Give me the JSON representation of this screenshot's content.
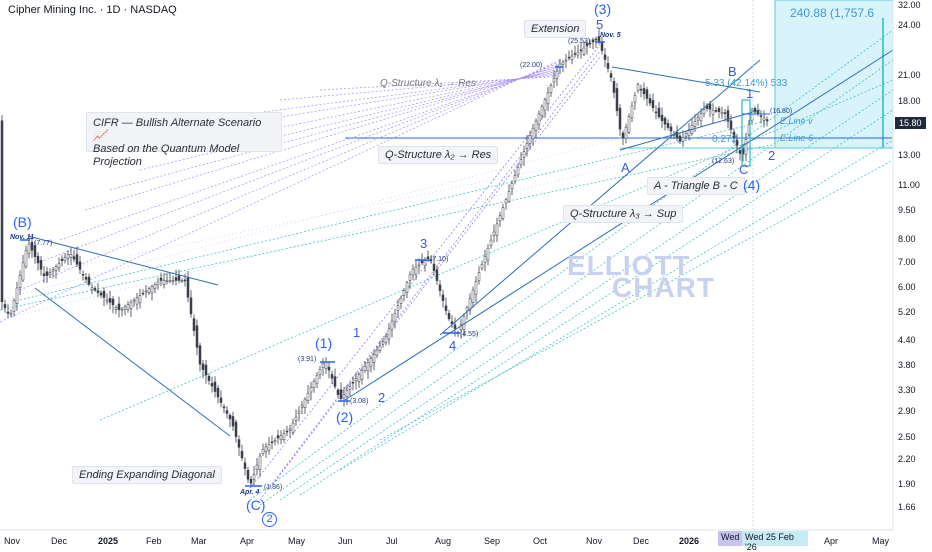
{
  "header": {
    "title": "Cipher Mining Inc. · 1D · NASDAQ"
  },
  "scenario": {
    "line1": "CIFR — Bullish Alternate Scenario📈",
    "line2": "Based on the Quantum Model Projection"
  },
  "annotations": {
    "q_res_1": "Q-Structure λ₁ → Res",
    "q_res_2": "Q-Structure λ₂ → Res",
    "q_sup_3": "Q-Structure λ₃ → Sup",
    "extension": "Extension",
    "triangle": "A - Triangle B - C",
    "ending_diag": "Ending Expanding Diagonal",
    "fib_533": "5.33 (42.14%) 533",
    "fib_0272": "0.272",
    "target": "240.88 (1,757.6",
    "eline_v": "E.Line v",
    "eline_6": "E.Line 6"
  },
  "waves": {
    "B_top": "(B)",
    "C_bottom": "(C)",
    "two_circle": "2",
    "one_paren": "(1)",
    "two_paren": "(2)",
    "one": "1",
    "two": "2",
    "three": "3",
    "four": "4",
    "three_paren": "(3)",
    "five": "5",
    "A": "A",
    "B": "B",
    "C": "C",
    "four_paren": "(4)",
    "one_right": "1",
    "two_right": "2"
  },
  "prices": {
    "p777": "(7.77)",
    "p186": "(1.86)",
    "p391": "(3.91)",
    "p308": "(3.08)",
    "p710": "(7.10)",
    "p455": "(4.55)",
    "p2200": "(22.00)",
    "p2552": "(25.52)",
    "p1680": "(16.80)",
    "p1263": "(12.63)"
  },
  "dates": {
    "nov11": "Nov. 11",
    "apr4": "Apr. 4",
    "nov5": "Nov. 5"
  },
  "watermark": {
    "line1": "ELLIOTT",
    "line2": "CHART"
  },
  "yaxis": {
    "current": "15.80",
    "ticks": [
      "32.00",
      "24.00",
      "21.00",
      "18.00",
      "15.80",
      "13.00",
      "11.00",
      "9.50",
      "8.00",
      "7.00",
      "6.00",
      "5.20",
      "4.40",
      "3.80",
      "3.30",
      "2.90",
      "2.50",
      "2.20",
      "1.90",
      "1.66"
    ]
  },
  "xaxis": {
    "ticks": [
      "Nov",
      "Dec",
      "2025",
      "Feb",
      "Mar",
      "Apr",
      "May",
      "Jun",
      "Jul",
      "Aug",
      "Sep",
      "Oct",
      "Nov",
      "Dec",
      "2026",
      "Wed",
      "Wed 25 Feb '26",
      "Apr",
      "May"
    ]
  },
  "colors": {
    "wave": "#2962ff",
    "trend": "#2f6fb5",
    "fan_violet": "#a78bfa",
    "fan_teal": "#2bb8c6",
    "target_zone": "#d9f3fb",
    "candle": "#3a3f4a"
  },
  "chart_data": {
    "type": "candlestick",
    "title": "Cipher Mining Inc. · 1D · NASDAQ",
    "scale": "log",
    "ylim": [
      1.6,
      32
    ],
    "grid": false,
    "series": [
      {
        "name": "CIFR",
        "x": [
          "2024-11-11",
          "2025-04-04",
          "2025-07-01",
          "2025-08-01",
          "2025-09-15",
          "2025-10-01",
          "2025-11-05",
          "2025-12-20",
          "2026-01-05",
          "2026-01-15"
        ],
        "values": [
          7.77,
          1.86,
          3.91,
          4.55,
          11.0,
          22.0,
          25.52,
          12.63,
          16.8,
          15.8
        ]
      }
    ],
    "pivots": [
      {
        "label": "(B)",
        "date": "2024-11-11",
        "price": 7.77
      },
      {
        "label": "(C)",
        "date": "2025-04-04",
        "price": 1.86
      },
      {
        "label": "(1)",
        "date": "2025-06-01",
        "price": 3.91
      },
      {
        "label": "(2)",
        "date": "2025-06-20",
        "price": 3.08
      },
      {
        "label": "3",
        "date": "2025-07-15",
        "price": 7.1
      },
      {
        "label": "4",
        "date": "2025-08-05",
        "price": 4.55
      },
      {
        "label": "5",
        "date": "2025-11-05",
        "price": 25.52
      },
      {
        "label": "C",
        "date": "2026-01-15",
        "price": 12.63
      },
      {
        "label": "1",
        "date": "2026-01-10",
        "price": 16.8
      }
    ]
  }
}
